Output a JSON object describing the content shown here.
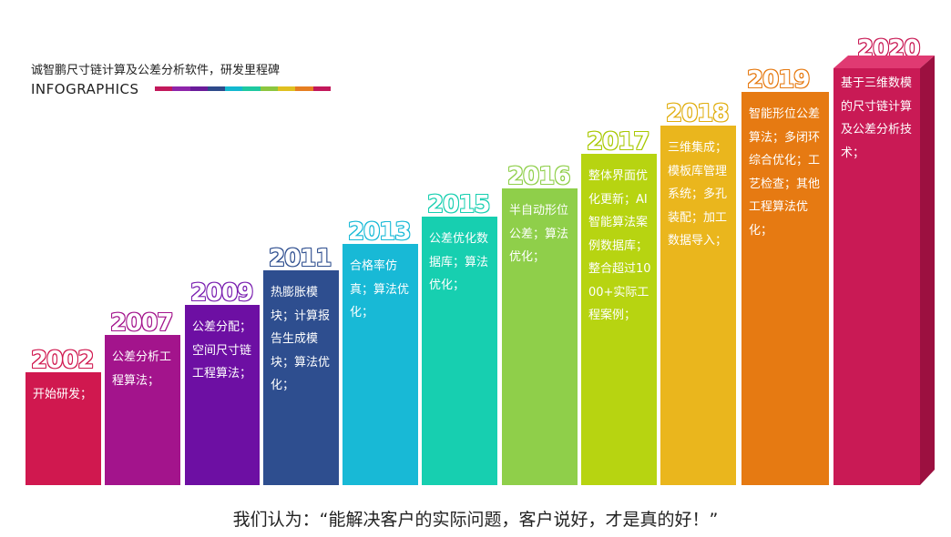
{
  "header": {
    "subtitle": "诚智鹏尺寸链计算及公差分析软件，研发里程碑",
    "title": "INFOGRAPHICS",
    "strip_colors": [
      "#c2185b",
      "#8e24aa",
      "#6a1b9a",
      "#2e4a8a",
      "#13b8d0",
      "#1ec9a0",
      "#8cc63f",
      "#e0c020",
      "#e67e22",
      "#c2185b"
    ]
  },
  "milestones": [
    {
      "year": "2002",
      "desc": "开始研发；",
      "color": "#d0184f",
      "outline": "#d0184f"
    },
    {
      "year": "2007",
      "desc": "公差分析工程算法；",
      "color": "#a3148c",
      "outline": "#a3148c"
    },
    {
      "year": "2009",
      "desc": "公差分配；空间尺寸链工程算法；",
      "color": "#6d0fa3",
      "outline": "#7a1fb0"
    },
    {
      "year": "2011",
      "desc": "热膨胀模块；计算报告生成模块；算法优化；",
      "color": "#2e4e8f",
      "outline": "#2e4e8f"
    },
    {
      "year": "2013",
      "desc": "合格率仿真；算法优化；",
      "color": "#18b9d6",
      "outline": "#18b9d6"
    },
    {
      "year": "2015",
      "desc": "公差优化数据库；算法优化；",
      "color": "#17cfb0",
      "outline": "#17cfb0"
    },
    {
      "year": "2016",
      "desc": "半自动形位公差；算法优化；",
      "color": "#8fcf4a",
      "outline": "#8fcf4a"
    },
    {
      "year": "2017",
      "desc": "整体界面优化更新；AI智能算法案例数据库；整合超过1000+实际工程案例；",
      "color": "#b7d411",
      "outline": "#a8c800"
    },
    {
      "year": "2018",
      "desc": "三维集成；模板库管理系统；多孔装配；加工数据导入；",
      "color": "#eab61d",
      "outline": "#e0ae10"
    },
    {
      "year": "2019",
      "desc": "智能形位公差算法；多闭环综合优化；工艺检查；其他工程算法优化；",
      "color": "#e67a12",
      "outline": "#e67a12"
    },
    {
      "year": "2020",
      "desc": "基于三维数模的尺寸链计算及公差分析技术；",
      "color": "#c91a55",
      "outline": "#c91a55"
    }
  ],
  "quote": "我们认为：“能解决客户的实际问题，客户说好，才是真的好！”"
}
